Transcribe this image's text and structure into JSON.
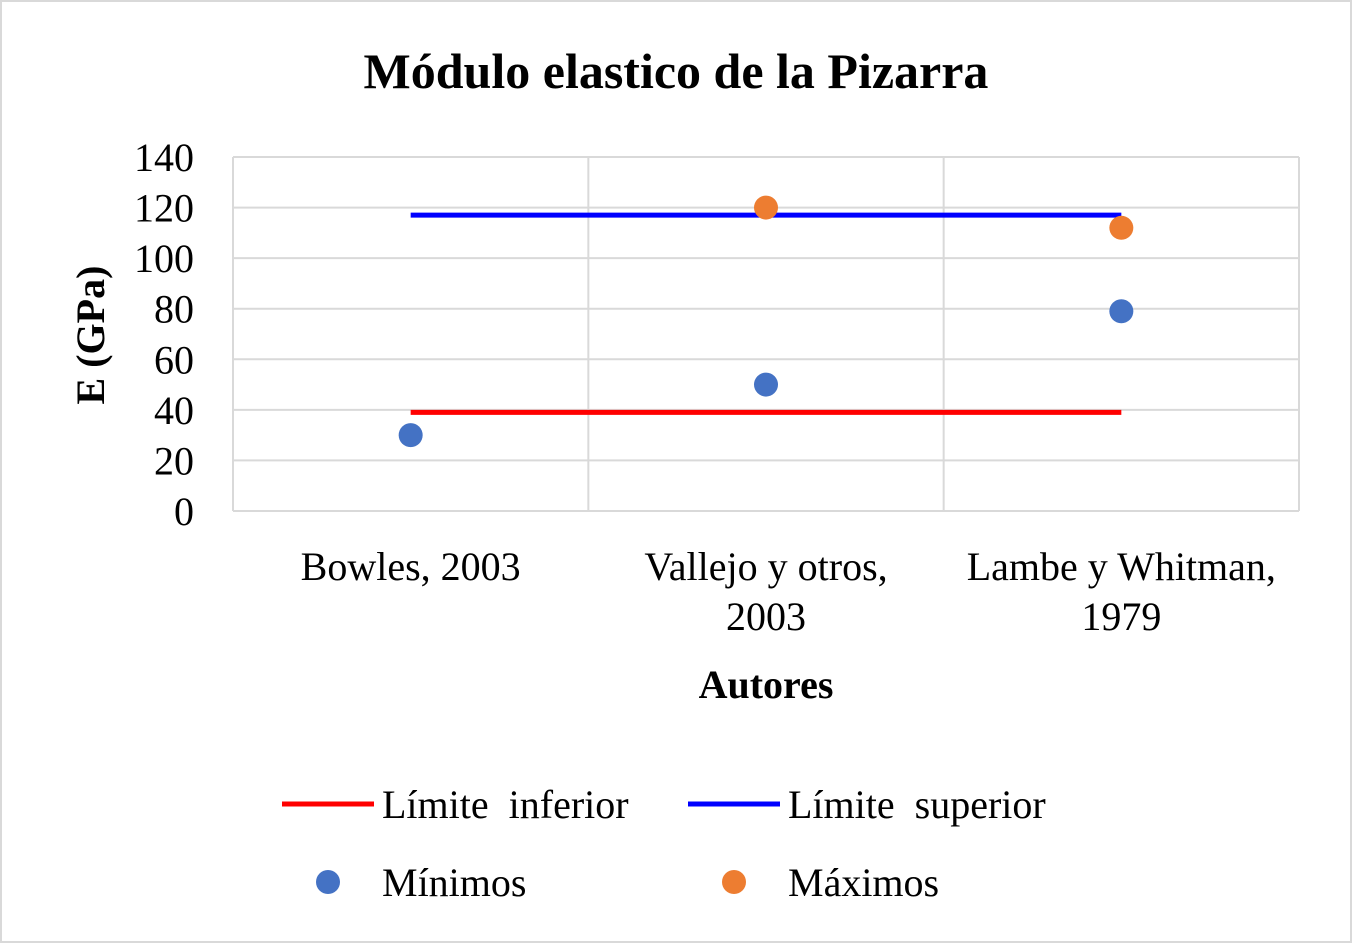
{
  "chart_data": {
    "type": "line",
    "title": "Módulo elastico de la Pizarra",
    "xlabel": "Autores",
    "ylabel": "E (GPa)",
    "ylim": [
      0,
      140
    ],
    "yticks": [
      0,
      20,
      40,
      60,
      80,
      100,
      120,
      140
    ],
    "grid": true,
    "legend_position": "bottom",
    "categories": [
      [
        "Bowles, 2003"
      ],
      [
        "Vallejo y otros,",
        "2003"
      ],
      [
        "Lambe y Whitman,",
        "1979"
      ]
    ],
    "series": [
      {
        "name": "Límite  inferior",
        "kind": "line",
        "color": "#ff0000",
        "values": [
          39,
          39,
          39
        ]
      },
      {
        "name": "Límite  superior",
        "kind": "line",
        "color": "#0000ff",
        "values": [
          117,
          117,
          117
        ]
      },
      {
        "name": "Mínimos",
        "kind": "marker",
        "color": "#4472c4",
        "values": [
          30,
          50,
          79
        ]
      },
      {
        "name": "Máximos",
        "kind": "marker",
        "color": "#ed7d31",
        "values": [
          null,
          120,
          112
        ]
      }
    ]
  }
}
